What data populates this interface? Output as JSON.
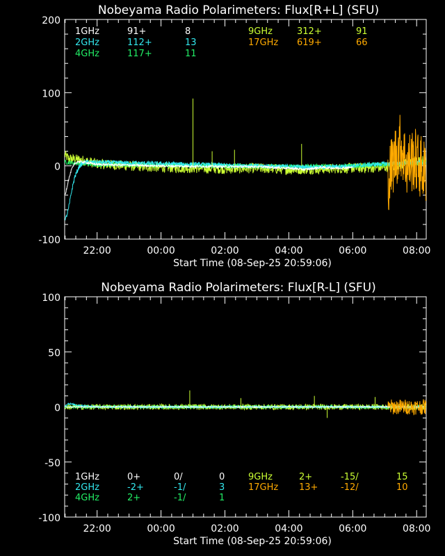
{
  "chart_data": [
    {
      "type": "line",
      "title": "Nobeyama Radio Polarimeters: Flux[R+L] (SFU)",
      "xlabel": "Start Time (08-Sep-25 20:59:06)",
      "ylabel": "",
      "xlim_hours": [
        20.985,
        32.3
      ],
      "ylim": [
        -100,
        200
      ],
      "x_ticks": [
        "22:00",
        "00:00",
        "02:00",
        "04:00",
        "06:00",
        "08:00"
      ],
      "x_tick_hours": [
        22,
        24,
        26,
        28,
        30,
        32
      ],
      "y_ticks": [
        -100,
        0,
        100,
        200
      ],
      "y_tick_labels": [
        "-100",
        "0",
        "100",
        "200"
      ],
      "legend": [
        {
          "freq": "1GHz",
          "v1": "91+",
          "v2": "8",
          "v3": "",
          "color": "#ffffff"
        },
        {
          "freq": "2GHz",
          "v1": "112+",
          "v2": "13",
          "v3": "",
          "color": "#33e8ee"
        },
        {
          "freq": "4GHz",
          "v1": "117+",
          "v2": "11",
          "v3": "",
          "color": "#22ee66"
        },
        {
          "freq": "9GHz",
          "v1": "312+",
          "v2": "91",
          "v3": "",
          "color": "#ccff33"
        },
        {
          "freq": "17GHz",
          "v1": "619+",
          "v2": "66",
          "v3": "",
          "color": "#ffaa00"
        }
      ],
      "series": [
        {
          "name": "9GHz",
          "color": "#ccff33",
          "x": [
            20.99,
            21.1,
            21.5,
            22.0,
            23.0,
            24.0,
            25.0,
            26.0,
            27.0,
            28.0,
            29.0,
            30.0,
            31.0,
            31.5,
            32.0,
            32.3
          ],
          "y": [
            15,
            10,
            8,
            3,
            0,
            -2,
            -3,
            -4,
            -3,
            -5,
            -4,
            -3,
            -2,
            2,
            5,
            8
          ],
          "noise": 7
        },
        {
          "name": "4GHz",
          "color": "#22ee66",
          "x": [
            20.99,
            21.5,
            22.0,
            24.0,
            26.0,
            28.0,
            30.0,
            31.0,
            32.0,
            32.3
          ],
          "y": [
            5,
            3,
            2,
            1,
            0,
            -1,
            0,
            2,
            4,
            5
          ],
          "noise": 3
        },
        {
          "name": "2GHz",
          "color": "#33e8ee",
          "x": [
            21.0,
            21.1,
            21.2,
            21.3,
            21.45,
            21.6,
            22.0,
            23.0,
            24.0,
            26.0,
            28.0,
            29.0,
            30.0,
            31.0,
            32.0,
            32.3
          ],
          "y": [
            -75,
            -60,
            -35,
            -15,
            0,
            5,
            5,
            4,
            3,
            1,
            -1,
            -2,
            0,
            3,
            5,
            4
          ],
          "noise": 3
        },
        {
          "name": "1GHz",
          "color": "#ffffff",
          "x": [
            21.0,
            21.1,
            21.2,
            21.3,
            21.4,
            21.6,
            22.0,
            23.0,
            24.0,
            26.0,
            27.0,
            28.0,
            28.5,
            29.0,
            29.5,
            30.0
          ],
          "y": [
            -40,
            -20,
            -5,
            3,
            6,
            5,
            2,
            1,
            0,
            -1,
            -1,
            -3,
            -5,
            -2,
            -3,
            -2
          ],
          "noise": 1.5
        },
        {
          "name": "17GHz",
          "color": "#ffaa00",
          "x": [
            31.1,
            31.3,
            31.5,
            31.7,
            31.9,
            32.1,
            32.3
          ],
          "y": [
            -20,
            10,
            30,
            0,
            10,
            0,
            -10
          ],
          "noise": 45
        }
      ],
      "spikes": [
        {
          "x": 25.0,
          "y": 92,
          "color": "#ccff33"
        },
        {
          "x": 25.6,
          "y": 20,
          "color": "#ccff33"
        },
        {
          "x": 26.3,
          "y": 22,
          "color": "#ccff33"
        },
        {
          "x": 28.4,
          "y": 30,
          "color": "#ccff33"
        }
      ]
    },
    {
      "type": "line",
      "title": "Nobeyama Radio Polarimeters: Flux[R-L] (SFU)",
      "xlabel": "Start Time (08-Sep-25 20:59:06)",
      "ylabel": "",
      "xlim_hours": [
        20.985,
        32.3
      ],
      "ylim": [
        -100,
        100
      ],
      "x_ticks": [
        "22:00",
        "00:00",
        "02:00",
        "04:00",
        "06:00",
        "08:00"
      ],
      "x_tick_hours": [
        22,
        24,
        26,
        28,
        30,
        32
      ],
      "y_ticks": [
        -100,
        -50,
        0,
        50,
        100
      ],
      "y_tick_labels": [
        "-100",
        "-50",
        "0",
        "50",
        "100"
      ],
      "legend": [
        {
          "freq": "1GHz",
          "v1": "0+",
          "v2": "0/",
          "v3": "0",
          "color": "#ffffff"
        },
        {
          "freq": "2GHz",
          "v1": "-2+",
          "v2": "-1/",
          "v3": "3",
          "color": "#33e8ee"
        },
        {
          "freq": "4GHz",
          "v1": "2+",
          "v2": "-1/",
          "v3": "1",
          "color": "#22ee66"
        },
        {
          "freq": "9GHz",
          "v1": "2+",
          "v2": "-15/",
          "v3": "15",
          "color": "#ccff33"
        },
        {
          "freq": "17GHz",
          "v1": "13+",
          "v2": "-12/",
          "v3": "10",
          "color": "#ffaa00"
        }
      ],
      "series": [
        {
          "name": "9GHz",
          "color": "#ccff33",
          "x": [
            20.99,
            22.0,
            24.0,
            26.0,
            28.0,
            30.0,
            32.0,
            32.3
          ],
          "y": [
            0,
            0,
            0,
            0,
            0,
            0,
            0,
            0
          ],
          "noise": 2.5
        },
        {
          "name": "4GHz",
          "color": "#22ee66",
          "x": [
            20.99,
            22.0,
            24.0,
            26.0,
            28.0,
            30.0,
            32.0,
            32.3
          ],
          "y": [
            0,
            0,
            0,
            0,
            0,
            0,
            0,
            0
          ],
          "noise": 1.2
        },
        {
          "name": "2GHz",
          "color": "#33e8ee",
          "x": [
            20.99,
            21.1,
            21.3,
            21.6,
            22.0,
            24.0,
            26.0,
            28.0,
            30.0,
            32.0,
            32.3
          ],
          "y": [
            1,
            3,
            2,
            1,
            0,
            0,
            0,
            0,
            0,
            0,
            0
          ],
          "noise": 0.8
        },
        {
          "name": "1GHz",
          "color": "#ffffff",
          "x": [
            20.99,
            22.0,
            24.0,
            26.0,
            28.0,
            30.0,
            32.0,
            32.3
          ],
          "y": [
            0,
            0,
            0,
            0,
            0,
            0,
            0,
            0
          ],
          "noise": 0.4
        },
        {
          "name": "17GHz",
          "color": "#ffaa00",
          "x": [
            31.1,
            31.5,
            32.0,
            32.3
          ],
          "y": [
            0,
            0,
            0,
            0
          ],
          "noise": 7
        }
      ],
      "spikes": [
        {
          "x": 24.9,
          "y": 15,
          "color": "#ccff33"
        },
        {
          "x": 26.5,
          "y": 8,
          "color": "#ccff33"
        },
        {
          "x": 28.8,
          "y": 10,
          "color": "#ccff33"
        },
        {
          "x": 29.2,
          "y": -10,
          "color": "#ccff33"
        },
        {
          "x": 30.7,
          "y": 9,
          "color": "#ccff33"
        }
      ]
    }
  ]
}
